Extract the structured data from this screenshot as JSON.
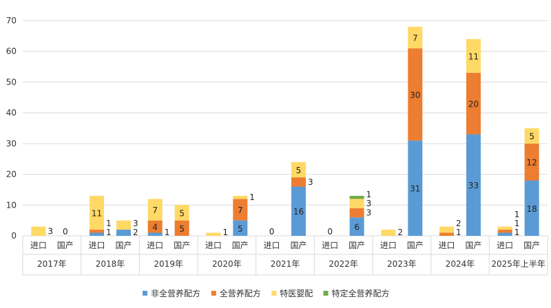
{
  "chart_data": {
    "type": "bar",
    "stacked": true,
    "title": "",
    "ylim": [
      0,
      70
    ],
    "yticks": [
      0,
      10,
      20,
      30,
      40,
      50,
      60,
      70
    ],
    "grid": true,
    "legend_position": "bottom",
    "groups": [
      "2017年",
      "2018年",
      "2019年",
      "2020年",
      "2021年",
      "2022年",
      "2023年",
      "2024年",
      "2025年上半年"
    ],
    "subcategories": [
      "进口",
      "国产"
    ],
    "series": [
      {
        "name": "非全营养配方",
        "color": "#5B9BD5",
        "values": [
          0,
          0,
          1,
          2,
          1,
          0,
          0,
          5,
          0,
          16,
          0,
          6,
          0,
          31,
          0,
          33,
          1,
          18
        ]
      },
      {
        "name": "全营养配方",
        "color": "#ED7D31",
        "values": [
          0,
          0,
          1,
          0,
          4,
          5,
          0,
          7,
          0,
          3,
          0,
          3,
          0,
          30,
          1,
          20,
          1,
          12
        ]
      },
      {
        "name": "特医婴配",
        "color": "#FFD966",
        "values": [
          3,
          0,
          11,
          3,
          7,
          5,
          1,
          1,
          0,
          5,
          0,
          3,
          2,
          7,
          2,
          11,
          1,
          5
        ]
      },
      {
        "name": "特定全营养配方",
        "color": "#70AD47",
        "values": [
          0,
          0,
          0,
          0,
          0,
          0,
          0,
          0,
          0,
          0,
          0,
          1,
          0,
          0,
          0,
          0,
          0,
          0
        ]
      }
    ],
    "zero_labels": [
      1,
      8,
      10
    ]
  }
}
